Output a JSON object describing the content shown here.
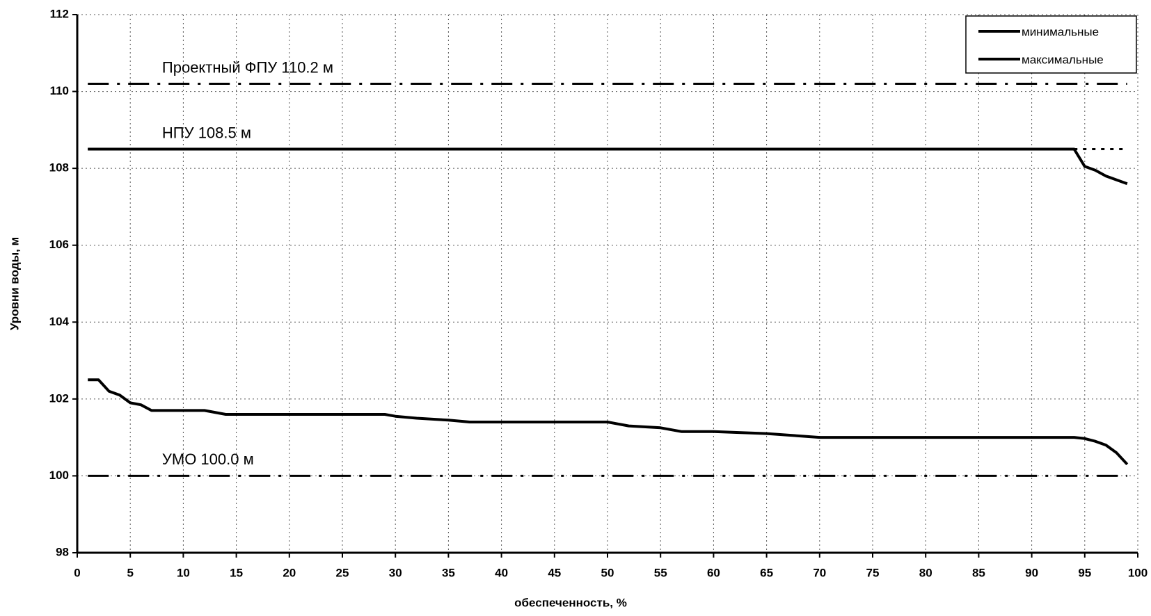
{
  "chart_data": {
    "type": "line",
    "x_label": "обеспеченность, %",
    "y_label": "Уровни воды, м",
    "xlim": [
      0,
      100
    ],
    "xticks": [
      0,
      5,
      10,
      15,
      20,
      25,
      30,
      35,
      40,
      45,
      50,
      55,
      60,
      65,
      70,
      75,
      80,
      85,
      90,
      95,
      100
    ],
    "ylim": [
      98,
      112
    ],
    "yticks": [
      98,
      100,
      102,
      104,
      106,
      108,
      110,
      112
    ],
    "grid": true,
    "legend_position": "upper-right",
    "series": [
      {
        "name": "минимальные",
        "color": "#000000",
        "x": [
          1,
          2,
          3,
          4,
          5,
          6,
          7,
          12,
          14,
          29,
          30,
          32,
          35,
          37,
          50,
          52,
          55,
          57,
          60,
          65,
          70,
          94,
          95,
          96,
          97,
          98,
          99
        ],
        "values": [
          102.5,
          102.5,
          102.2,
          102.1,
          101.9,
          101.85,
          101.7,
          101.7,
          101.6,
          101.6,
          101.55,
          101.5,
          101.45,
          101.4,
          101.4,
          101.3,
          101.25,
          101.15,
          101.15,
          101.1,
          101.0,
          101.0,
          100.97,
          100.9,
          100.8,
          100.6,
          100.3
        ]
      },
      {
        "name": "максимальные",
        "color": "#000000",
        "x": [
          1,
          94,
          95,
          96,
          97,
          98,
          99
        ],
        "values": [
          108.5,
          108.5,
          108.05,
          107.95,
          107.8,
          107.7,
          107.6
        ]
      }
    ],
    "reference_lines": [
      {
        "label": "Проектный ФПУ 110.2 м",
        "value": 110.2,
        "style": "dash-dot"
      },
      {
        "label": "НПУ 108.5 м",
        "value": 108.5,
        "style": "dotted"
      },
      {
        "label": "УМО 100.0 м",
        "value": 100.0,
        "style": "dash-dot"
      }
    ]
  }
}
